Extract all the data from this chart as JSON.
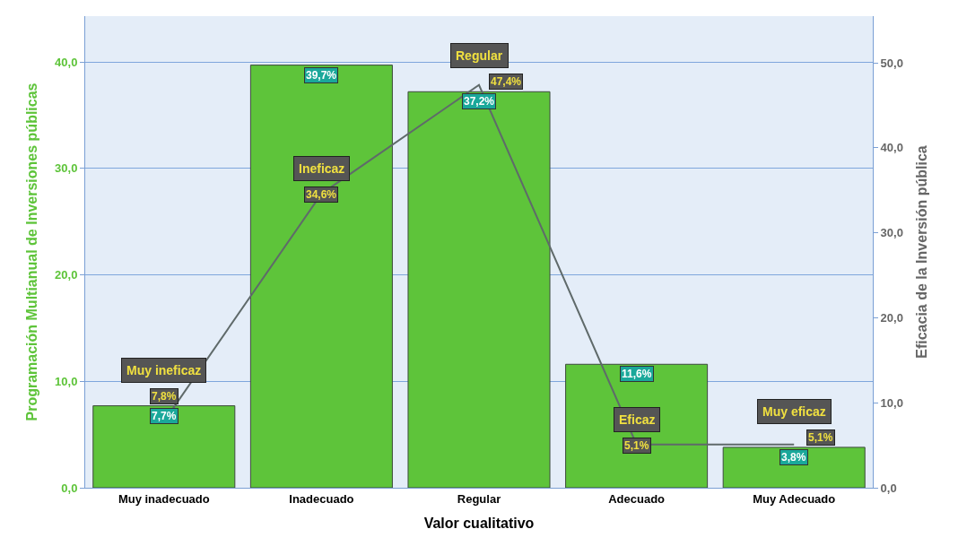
{
  "chart_data": {
    "type": "bar",
    "xlabel": "Valor cualitativo",
    "ylabel": "Programación Multianual de Inversiones públicas",
    "y2label": "Eficacia de la Inversión pública",
    "categories": [
      "Muy inadecuado",
      "Inadecuado",
      "Regular",
      "Adecuado",
      "Muy Adecuado"
    ],
    "series": [
      {
        "color": "#5ec43a",
        "values": [
          7.7,
          39.7,
          37.2,
          11.6,
          3.8
        ],
        "value_labels": [
          "7,7%",
          "39,7%",
          "37,2%",
          "11,6%",
          "3,8%"
        ]
      },
      {
        "type": "line",
        "axis": "y2",
        "marker": "none",
        "color": "#5f6a6a",
        "values": [
          7.8,
          34.6,
          47.4,
          5.1,
          5.1
        ],
        "value_labels": [
          "7,8%",
          "34,6%",
          "47,4%",
          "5,1%",
          "5,1%"
        ]
      }
    ],
    "ylim": [
      0,
      44.3
    ],
    "yticks": [
      {
        "value": 0,
        "label": "0,0"
      },
      {
        "value": 10,
        "label": "10,0"
      },
      {
        "value": 20,
        "label": "20,0"
      },
      {
        "value": 30,
        "label": "30,0"
      },
      {
        "value": 40,
        "label": "40,0"
      }
    ],
    "y2lim": [
      0,
      55.5
    ],
    "y2ticks": [
      {
        "value": 0,
        "label": "0,0"
      },
      {
        "value": 10,
        "label": "10,0"
      },
      {
        "value": 20,
        "label": "20,0"
      },
      {
        "value": 30,
        "label": "30,0"
      },
      {
        "value": 40,
        "label": "40,0"
      },
      {
        "value": 50,
        "label": "50,0"
      }
    ],
    "grid": "y",
    "annotations": [
      "Muy ineficaz",
      "Ineficaz",
      "Regular",
      "Eficaz",
      "Muy eficaz"
    ]
  }
}
